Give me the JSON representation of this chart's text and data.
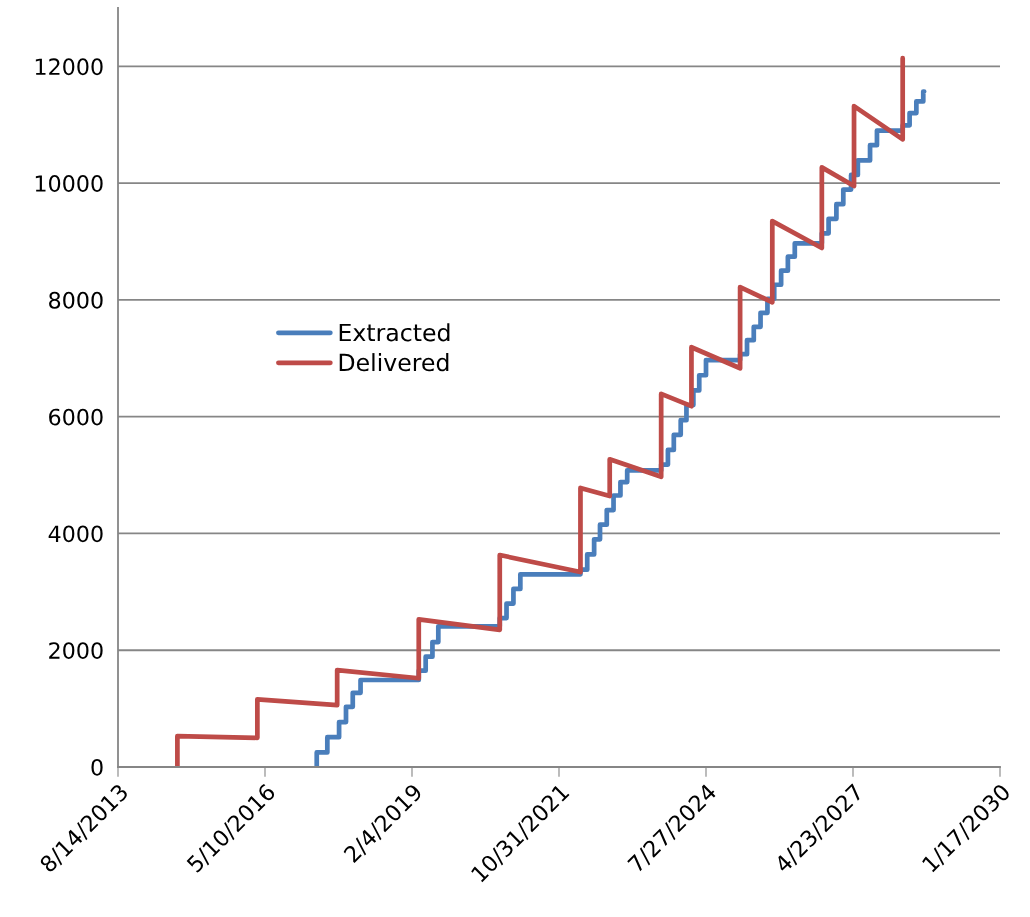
{
  "chart_data": {
    "type": "line",
    "xlim": [
      "2013-08-14",
      "2030-01-17"
    ],
    "xticks": [
      {
        "value": "2013-08-14",
        "label": "8/14/2013"
      },
      {
        "value": "2016-05-10",
        "label": "5/10/2016"
      },
      {
        "value": "2019-02-04",
        "label": "2/4/2019"
      },
      {
        "value": "2021-10-31",
        "label": "10/31/2021"
      },
      {
        "value": "2024-07-27",
        "label": "7/27/2024"
      },
      {
        "value": "2027-04-23",
        "label": "4/23/2027"
      },
      {
        "value": "2030-01-17",
        "label": "1/17/2030"
      }
    ],
    "ylim": [
      0,
      13000
    ],
    "yticks": [
      0,
      2000,
      4000,
      6000,
      8000,
      10000,
      12000
    ],
    "grid": "y",
    "legend": "center",
    "series": [
      {
        "name": "Extracted",
        "type": "step",
        "color": "#4a7ebb",
        "x": [
          "2017-04-27",
          "2017-04-27",
          "2017-07-08",
          "2017-09-26",
          "2017-11-12",
          "2017-12-28",
          "2018-02-19",
          "2019-03-22",
          "2019-05-08",
          "2019-06-23",
          "2019-08-02",
          "2020-09-23",
          "2020-11-08",
          "2020-12-25",
          "2021-02-10",
          "2022-03-26",
          "2022-05-11",
          "2022-06-27",
          "2022-08-06",
          "2022-09-21",
          "2022-11-06",
          "2022-12-23",
          "2023-02-07",
          "2023-09-26",
          "2023-11-11",
          "2023-12-21",
          "2024-02-06",
          "2024-03-16",
          "2024-05-02",
          "2024-06-11",
          "2024-07-27",
          "2025-03-16",
          "2025-05-02",
          "2025-06-17",
          "2025-08-02",
          "2025-09-18",
          "2025-11-03",
          "2025-12-20",
          "2026-02-04",
          "2026-03-23",
          "2026-09-23",
          "2026-11-08",
          "2026-12-31",
          "2027-02-16",
          "2027-04-10",
          "2027-05-26",
          "2027-08-17",
          "2027-10-03",
          "2028-03-26",
          "2028-05-12",
          "2028-06-27",
          "2028-08-13",
          "2028-08-19"
        ],
        "values": [
          0,
          250,
          510,
          770,
          1030,
          1270,
          1490,
          1650,
          1890,
          2140,
          2410,
          2550,
          2800,
          3050,
          3300,
          3380,
          3640,
          3900,
          4150,
          4400,
          4650,
          4880,
          5080,
          5180,
          5430,
          5690,
          5940,
          6200,
          6450,
          6710,
          6970,
          7070,
          7310,
          7540,
          7780,
          8020,
          8260,
          8500,
          8740,
          8970,
          9140,
          9390,
          9640,
          9890,
          10140,
          10390,
          10650,
          10900,
          10990,
          11200,
          11400,
          11570,
          11570
        ]
      },
      {
        "name": "Delivered",
        "color": "#be4b48",
        "x": [
          "2014-09-22",
          "2014-09-22",
          "2016-03-19",
          "2016-03-19",
          "2017-09-13",
          "2017-09-13",
          "2019-03-22",
          "2019-03-22",
          "2020-09-23",
          "2020-09-23",
          "2022-03-26",
          "2022-03-26",
          "2022-10-11",
          "2022-10-11",
          "2023-09-26",
          "2023-09-26",
          "2024-04-19",
          "2024-04-19",
          "2025-03-16",
          "2025-03-16",
          "2025-10-21",
          "2025-10-21",
          "2026-09-23",
          "2026-09-23",
          "2027-04-30",
          "2027-04-30",
          "2028-03-26",
          "2028-03-26"
        ],
        "values": [
          0,
          530,
          500,
          1160,
          1060,
          1660,
          1520,
          2530,
          2350,
          3630,
          3340,
          4780,
          4640,
          5270,
          4970,
          6390,
          6180,
          7190,
          6830,
          8220,
          7960,
          9350,
          8890,
          10270,
          9950,
          11320,
          10750,
          12140
        ]
      }
    ]
  }
}
